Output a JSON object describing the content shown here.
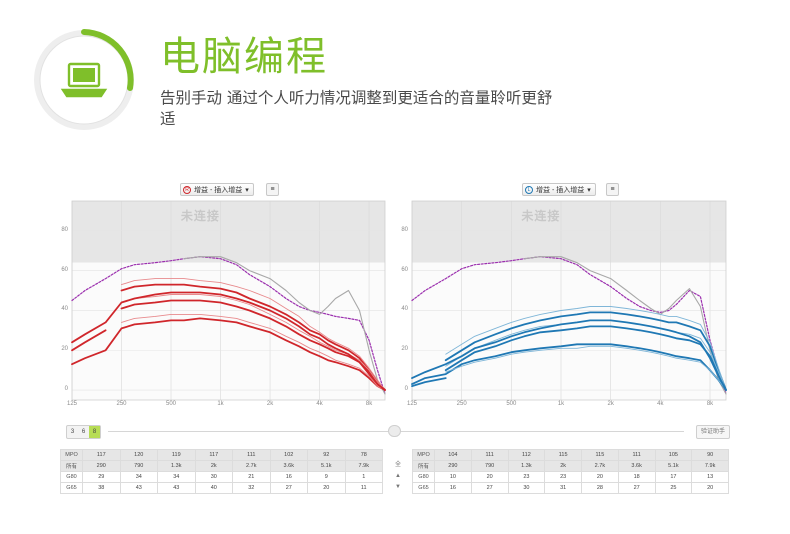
{
  "header": {
    "title": "电脑编程",
    "subtitle": "告别手动 通过个人听力情况调整到更适合的音量聆听更舒适",
    "icon": "laptop-icon",
    "accent": "#7fbf2a"
  },
  "panels": [
    {
      "side": "right-ear",
      "ear_badge": "R",
      "selector_label": "增益 - 插入增益",
      "watermark": "未连接",
      "color": "#d0262b",
      "light_color": "#e88a8d"
    },
    {
      "side": "left-ear",
      "ear_badge": "L",
      "selector_label": "增益 - 插入增益",
      "watermark": "未连接",
      "color": "#1f78b4",
      "light_color": "#7fb6d8"
    }
  ],
  "controls": {
    "channel_options": [
      "3",
      "6",
      "8"
    ],
    "channel_selected": "8",
    "help_button": "验证助手",
    "mid_labels": [
      "全",
      "▲",
      "▼"
    ]
  },
  "chart_data": [
    {
      "type": "line",
      "title": "增益 - 插入增益",
      "x_ticks": [
        "125",
        "250",
        "500",
        "1k",
        "2k",
        "4k",
        "8k"
      ],
      "y_ticks": [
        "0",
        "20",
        "40",
        "60",
        "80"
      ],
      "ylim": [
        -5,
        95
      ],
      "x": [
        125,
        150,
        200,
        250,
        300,
        400,
        500,
        600,
        750,
        1000,
        1250,
        1500,
        2000,
        2500,
        3000,
        3500,
        4000,
        4500,
        5000,
        6000,
        7000,
        8000,
        9000,
        10000
      ],
      "series": [
        {
          "style": "limit-dotted",
          "values": [
            45,
            50,
            56,
            61,
            63,
            64,
            65,
            66,
            67,
            66,
            63,
            58,
            52,
            46,
            42,
            40,
            39,
            38,
            37,
            36,
            35,
            25,
            10,
            -2
          ]
        },
        {
          "style": "limit-gray",
          "values": [
            null,
            null,
            null,
            null,
            null,
            null,
            null,
            66,
            67,
            67,
            64,
            60,
            56,
            50,
            44,
            40,
            38,
            42,
            46,
            50,
            40,
            20,
            5,
            -2
          ]
        },
        {
          "style": "upper",
          "values": [
            null,
            null,
            null,
            50,
            52,
            53,
            53,
            53,
            52,
            51,
            49,
            46,
            42,
            38,
            34,
            30,
            28,
            25,
            23,
            20,
            16,
            10,
            4,
            0
          ]
        },
        {
          "style": "upper-light",
          "values": [
            null,
            null,
            null,
            53,
            55,
            56,
            56,
            56,
            55,
            54,
            52,
            50,
            46,
            41,
            37,
            32,
            29,
            26,
            24,
            21,
            17,
            11,
            5,
            0
          ]
        },
        {
          "style": "mid",
          "values": [
            null,
            null,
            null,
            41,
            43,
            44,
            45,
            45,
            45,
            44,
            42,
            40,
            36,
            32,
            28,
            25,
            23,
            21,
            19,
            17,
            14,
            9,
            3,
            0
          ]
        },
        {
          "style": "mid-light",
          "values": [
            null,
            null,
            null,
            44,
            46,
            47,
            48,
            48,
            48,
            47,
            45,
            43,
            38,
            34,
            30,
            27,
            24,
            22,
            20,
            18,
            15,
            10,
            4,
            0
          ]
        },
        {
          "style": "lower",
          "values": [
            13,
            16,
            20,
            31,
            33,
            34,
            35,
            35,
            36,
            35,
            34,
            32,
            29,
            25,
            22,
            19,
            17,
            15,
            14,
            12,
            10,
            6,
            2,
            0
          ]
        },
        {
          "style": "lower-light",
          "values": [
            null,
            null,
            null,
            34,
            36,
            37,
            38,
            38,
            38,
            37,
            36,
            34,
            31,
            27,
            24,
            21,
            19,
            17,
            15,
            13,
            11,
            7,
            2,
            0
          ]
        },
        {
          "style": "outer",
          "values": [
            24,
            28,
            34,
            44,
            46,
            48,
            49,
            49,
            49,
            48,
            46,
            44,
            40,
            36,
            32,
            28,
            26,
            23,
            21,
            18,
            14,
            8,
            3,
            0
          ]
        },
        {
          "style": "outer2",
          "values": [
            20,
            24,
            30,
            null,
            null,
            null,
            null,
            null,
            null,
            null,
            null,
            null,
            null,
            null,
            null,
            null,
            null,
            null,
            null,
            null,
            null,
            null,
            null,
            null
          ]
        }
      ]
    },
    {
      "type": "line",
      "title": "增益 - 插入增益",
      "x_ticks": [
        "125",
        "250",
        "500",
        "1k",
        "2k",
        "4k",
        "8k"
      ],
      "y_ticks": [
        "0",
        "20",
        "40",
        "60",
        "80"
      ],
      "ylim": [
        -5,
        95
      ],
      "x": [
        125,
        150,
        200,
        250,
        300,
        400,
        500,
        600,
        750,
        1000,
        1250,
        1500,
        2000,
        2500,
        3000,
        3500,
        4000,
        4500,
        5000,
        6000,
        7000,
        8000,
        9000,
        10000
      ],
      "series": [
        {
          "style": "limit-dotted",
          "values": [
            45,
            50,
            56,
            61,
            63,
            64,
            65,
            66,
            67,
            66,
            63,
            58,
            52,
            46,
            42,
            40,
            39,
            40,
            43,
            50,
            47,
            25,
            10,
            -2
          ]
        },
        {
          "style": "limit-gray",
          "values": [
            null,
            null,
            null,
            null,
            null,
            null,
            null,
            66,
            67,
            67,
            64,
            60,
            56,
            50,
            45,
            41,
            38,
            41,
            45,
            51,
            42,
            20,
            5,
            -2
          ]
        },
        {
          "style": "upper",
          "values": [
            null,
            null,
            15,
            20,
            24,
            28,
            31,
            33,
            35,
            37,
            38,
            39,
            39,
            38,
            37,
            36,
            35,
            34,
            34,
            32,
            30,
            22,
            10,
            0
          ]
        },
        {
          "style": "upper-light",
          "values": [
            null,
            null,
            18,
            23,
            27,
            31,
            34,
            36,
            38,
            40,
            41,
            42,
            42,
            41,
            40,
            39,
            38,
            37,
            37,
            35,
            33,
            24,
            11,
            0
          ]
        },
        {
          "style": "mid",
          "values": [
            null,
            null,
            10,
            15,
            19,
            22,
            25,
            27,
            29,
            30,
            31,
            32,
            32,
            31,
            30,
            29,
            28,
            27,
            26,
            25,
            23,
            17,
            8,
            0
          ]
        },
        {
          "style": "mid-light",
          "values": [
            null,
            null,
            12,
            17,
            21,
            25,
            28,
            30,
            32,
            33,
            34,
            35,
            35,
            34,
            33,
            32,
            31,
            30,
            29,
            28,
            26,
            19,
            9,
            0
          ]
        },
        {
          "style": "lower",
          "values": [
            3,
            6,
            8,
            13,
            15,
            17,
            19,
            20,
            21,
            22,
            23,
            23,
            23,
            22,
            21,
            20,
            19,
            18,
            17,
            16,
            15,
            10,
            5,
            0
          ]
        },
        {
          "style": "lower-light",
          "values": [
            null,
            null,
            9,
            12,
            14,
            16,
            18,
            19,
            20,
            21,
            21,
            22,
            22,
            21,
            20,
            19,
            18,
            17,
            16,
            15,
            14,
            10,
            5,
            0
          ]
        },
        {
          "style": "outer",
          "values": [
            6,
            9,
            13,
            17,
            21,
            24,
            27,
            29,
            31,
            33,
            34,
            35,
            35,
            34,
            33,
            32,
            31,
            30,
            29,
            27,
            24,
            16,
            7,
            0
          ]
        },
        {
          "style": "outer2",
          "values": [
            2,
            4,
            6,
            null,
            null,
            null,
            null,
            null,
            null,
            null,
            null,
            null,
            null,
            null,
            null,
            null,
            null,
            null,
            null,
            null,
            null,
            null,
            null,
            null
          ]
        }
      ]
    }
  ],
  "tables": [
    {
      "rows": [
        {
          "label": "MPO",
          "values": [
            "117",
            "120",
            "119",
            "117",
            "111",
            "102",
            "92",
            "78"
          ],
          "header": true
        },
        {
          "label": "所有",
          "values": [
            "290",
            "790",
            "1.3k",
            "2k",
            "2.7k",
            "3.6k",
            "5.1k",
            "7.9k"
          ],
          "header": true
        },
        {
          "label": "G80",
          "values": [
            "29",
            "34",
            "34",
            "30",
            "21",
            "16",
            "9",
            "1"
          ],
          "header": false
        },
        {
          "label": "G65",
          "values": [
            "38",
            "43",
            "43",
            "40",
            "32",
            "27",
            "20",
            "11"
          ],
          "header": false
        }
      ]
    },
    {
      "rows": [
        {
          "label": "MPO",
          "values": [
            "104",
            "111",
            "112",
            "115",
            "115",
            "111",
            "105",
            "90"
          ],
          "header": true
        },
        {
          "label": "所有",
          "values": [
            "290",
            "790",
            "1.3k",
            "2k",
            "2.7k",
            "3.6k",
            "5.1k",
            "7.9k"
          ],
          "header": true
        },
        {
          "label": "G80",
          "values": [
            "10",
            "20",
            "23",
            "23",
            "20",
            "18",
            "17",
            "13"
          ],
          "header": false
        },
        {
          "label": "G65",
          "values": [
            "16",
            "27",
            "30",
            "31",
            "28",
            "27",
            "25",
            "20"
          ],
          "header": false
        }
      ]
    }
  ]
}
